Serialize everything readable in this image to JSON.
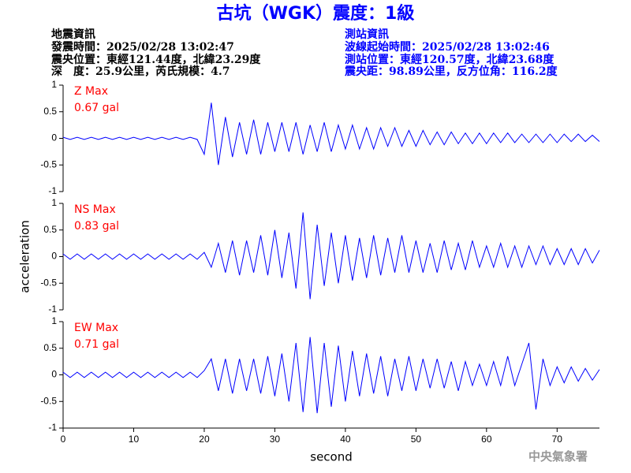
{
  "header": {
    "title": "古坑（WGK）震度：1級",
    "left": [
      "地震資訊",
      "發震時間：2025/02/28 13:02:47",
      "震央位置：東經121.44度，北緯23.29度",
      "深　度：25.9公里，芮氏規模：4.7"
    ],
    "right": [
      "測站資訊",
      "波線起始時間：2025/02/28 13:02:46",
      "測站位置：東經120.57度，北緯23.68度",
      "震央距：98.89公里，反方位角：116.2度"
    ]
  },
  "footer": "中央氣象署",
  "chart_data": [
    {
      "type": "line",
      "annotations": [
        "Z Max",
        "0.67 gal"
      ],
      "color": "#0000ff",
      "xlim": [
        0,
        76
      ],
      "ylim": [
        -1,
        1
      ],
      "yticks": [
        -1,
        -0.5,
        0,
        0.5,
        1
      ],
      "x": [
        0,
        1,
        2,
        3,
        4,
        5,
        6,
        7,
        8,
        9,
        10,
        11,
        12,
        13,
        14,
        15,
        16,
        17,
        18,
        19,
        20,
        21,
        22,
        23,
        24,
        25,
        26,
        27,
        28,
        29,
        30,
        31,
        32,
        33,
        34,
        35,
        36,
        37,
        38,
        39,
        40,
        41,
        42,
        43,
        44,
        45,
        46,
        47,
        48,
        49,
        50,
        51,
        52,
        53,
        54,
        55,
        56,
        57,
        58,
        59,
        60,
        61,
        62,
        63,
        64,
        65,
        66,
        67,
        68,
        69,
        70,
        71,
        72,
        73,
        74,
        75,
        76
      ],
      "values": [
        0.02,
        -0.02,
        0.02,
        -0.02,
        0.02,
        -0.02,
        0.02,
        -0.02,
        0.02,
        -0.02,
        0.02,
        -0.02,
        0.02,
        -0.02,
        0.02,
        -0.02,
        0.02,
        -0.02,
        0.02,
        -0.02,
        -0.3,
        0.67,
        -0.5,
        0.4,
        -0.35,
        0.3,
        -0.3,
        0.35,
        -0.3,
        0.3,
        -0.25,
        0.3,
        -0.25,
        0.3,
        -0.3,
        0.25,
        -0.25,
        0.3,
        -0.25,
        0.25,
        -0.2,
        0.25,
        -0.2,
        0.2,
        -0.2,
        0.2,
        -0.15,
        0.2,
        -0.15,
        0.15,
        -0.15,
        0.15,
        -0.12,
        0.12,
        -0.12,
        0.12,
        -0.1,
        0.1,
        -0.1,
        0.1,
        -0.1,
        0.1,
        -0.08,
        0.1,
        -0.08,
        0.08,
        -0.08,
        0.08,
        -0.08,
        0.08,
        -0.08,
        0.08,
        -0.06,
        0.08,
        -0.06,
        0.06,
        -0.06
      ]
    },
    {
      "type": "line",
      "annotations": [
        "NS Max",
        "0.83 gal"
      ],
      "color": "#0000ff",
      "xlim": [
        0,
        76
      ],
      "ylim": [
        -1,
        1
      ],
      "yticks": [
        -1,
        -0.5,
        0,
        0.5,
        1
      ],
      "ylabel": "acceleration",
      "x": [
        0,
        1,
        2,
        3,
        4,
        5,
        6,
        7,
        8,
        9,
        10,
        11,
        12,
        13,
        14,
        15,
        16,
        17,
        18,
        19,
        20,
        21,
        22,
        23,
        24,
        25,
        26,
        27,
        28,
        29,
        30,
        31,
        32,
        33,
        34,
        35,
        36,
        37,
        38,
        39,
        40,
        41,
        42,
        43,
        44,
        45,
        46,
        47,
        48,
        49,
        50,
        51,
        52,
        53,
        54,
        55,
        56,
        57,
        58,
        59,
        60,
        61,
        62,
        63,
        64,
        65,
        66,
        67,
        68,
        69,
        70,
        71,
        72,
        73,
        74,
        75,
        76
      ],
      "values": [
        0.05,
        -0.05,
        0.05,
        -0.05,
        0.05,
        -0.05,
        0.05,
        -0.05,
        0.05,
        -0.05,
        0.05,
        -0.05,
        0.05,
        -0.05,
        0.05,
        -0.05,
        0.05,
        -0.05,
        0.05,
        -0.05,
        0.08,
        -0.2,
        0.25,
        -0.3,
        0.3,
        -0.35,
        0.3,
        -0.3,
        0.4,
        -0.35,
        0.5,
        -0.4,
        0.45,
        -0.6,
        0.83,
        -0.8,
        0.6,
        -0.55,
        0.45,
        -0.5,
        0.4,
        -0.45,
        0.35,
        -0.4,
        0.4,
        -0.35,
        0.35,
        -0.3,
        0.4,
        -0.3,
        0.3,
        -0.3,
        0.25,
        -0.3,
        0.3,
        -0.25,
        0.25,
        -0.25,
        0.3,
        -0.2,
        0.2,
        -0.2,
        0.25,
        -0.2,
        0.2,
        -0.2,
        0.2,
        -0.15,
        0.2,
        -0.15,
        0.15,
        -0.15,
        0.15,
        -0.15,
        0.15,
        -0.12,
        0.12
      ]
    },
    {
      "type": "line",
      "annotations": [
        "EW Max",
        "0.71 gal"
      ],
      "color": "#0000ff",
      "xlim": [
        0,
        76
      ],
      "ylim": [
        -1,
        1
      ],
      "yticks": [
        -1,
        -0.5,
        0,
        0.5,
        1
      ],
      "xticks": [
        0,
        10,
        20,
        30,
        40,
        50,
        60,
        70
      ],
      "xlabel": "second",
      "x": [
        0,
        1,
        2,
        3,
        4,
        5,
        6,
        7,
        8,
        9,
        10,
        11,
        12,
        13,
        14,
        15,
        16,
        17,
        18,
        19,
        20,
        21,
        22,
        23,
        24,
        25,
        26,
        27,
        28,
        29,
        30,
        31,
        32,
        33,
        34,
        35,
        36,
        37,
        38,
        39,
        40,
        41,
        42,
        43,
        44,
        45,
        46,
        47,
        48,
        49,
        50,
        51,
        52,
        53,
        54,
        55,
        56,
        57,
        58,
        59,
        60,
        61,
        62,
        63,
        64,
        65,
        66,
        67,
        68,
        69,
        70,
        71,
        72,
        73,
        74,
        75,
        76
      ],
      "values": [
        0.05,
        -0.05,
        0.05,
        -0.05,
        0.05,
        -0.05,
        0.05,
        -0.05,
        0.05,
        -0.05,
        0.05,
        -0.05,
        0.05,
        -0.05,
        0.05,
        -0.05,
        0.05,
        -0.05,
        0.05,
        -0.05,
        0.08,
        0.3,
        -0.3,
        0.3,
        -0.35,
        0.3,
        -0.3,
        0.3,
        -0.35,
        0.35,
        -0.4,
        0.4,
        -0.5,
        0.6,
        -0.7,
        0.71,
        -0.72,
        0.6,
        -0.6,
        0.55,
        -0.5,
        0.45,
        -0.4,
        0.4,
        -0.35,
        0.35,
        -0.4,
        0.3,
        -0.3,
        0.35,
        -0.3,
        0.3,
        -0.25,
        0.3,
        -0.25,
        0.25,
        -0.3,
        0.25,
        -0.2,
        0.2,
        -0.2,
        0.25,
        -0.2,
        0.35,
        -0.2,
        0.2,
        0.6,
        -0.65,
        0.3,
        -0.2,
        0.15,
        -0.15,
        0.15,
        -0.12,
        0.12,
        -0.1,
        0.1
      ]
    }
  ]
}
